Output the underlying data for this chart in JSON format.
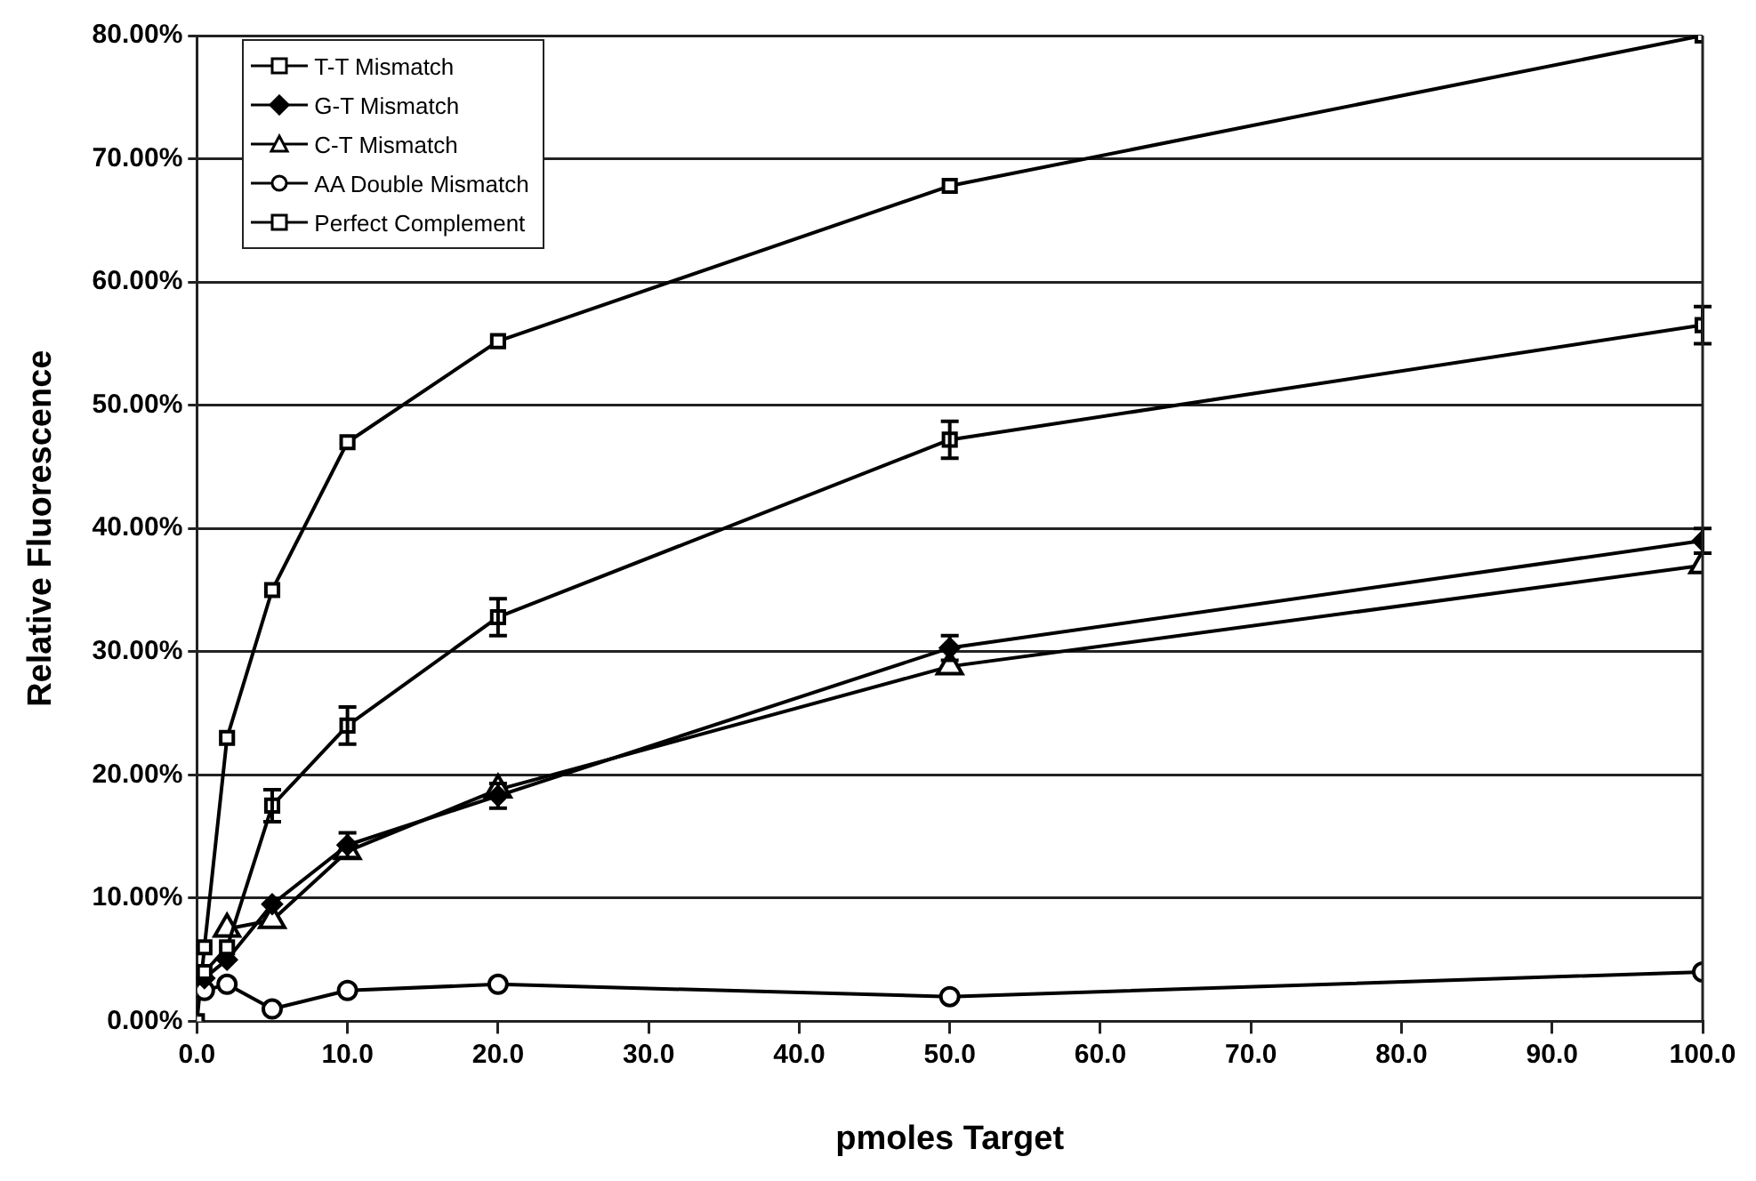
{
  "chart_data": {
    "type": "line",
    "xlabel": "pmoles Target",
    "ylabel": "Relative Fluorescence",
    "x": [
      0.5,
      2,
      5,
      10,
      20,
      50,
      100
    ],
    "series": [
      {
        "name": "T-T Mismatch",
        "color": "#000000",
        "marker": "square",
        "values": [
          4,
          6,
          17.5,
          24,
          32.8,
          47.2,
          56.5
        ],
        "errors": [
          null,
          null,
          1.3,
          1.5,
          1.5,
          1.5,
          1.5
        ]
      },
      {
        "name": "G-T Mismatch",
        "color": "#000000",
        "marker": "diamond",
        "values": [
          3.5,
          5,
          9.5,
          14.3,
          18.3,
          30.3,
          39
        ],
        "errors": [
          null,
          null,
          null,
          1,
          1,
          1,
          1
        ]
      },
      {
        "name": "C-T Mismatch",
        "color": "#000000",
        "marker": "triangle",
        "values": [
          null,
          7.5,
          8.2,
          13.8,
          18.8,
          28.8,
          37
        ]
      },
      {
        "name": "AA Double Mismatch",
        "color": "#000000",
        "marker": "circle",
        "values": [
          2.5,
          3,
          1,
          2.5,
          3,
          2,
          4
        ]
      },
      {
        "name": "Perfect Complement",
        "color": "#000000",
        "marker": "square",
        "x": [
          0,
          0.5,
          2,
          5,
          10,
          20,
          50,
          100
        ],
        "values": [
          0,
          6,
          23,
          35,
          47,
          55.2,
          67.8,
          80
        ]
      }
    ],
    "xlim": [
      0,
      100
    ],
    "xticks": [
      {
        "value": 0,
        "label": "0.0"
      },
      {
        "value": 10,
        "label": "10.0"
      },
      {
        "value": 20,
        "label": "20.0"
      },
      {
        "value": 30,
        "label": "30.0"
      },
      {
        "value": 40,
        "label": "40.0"
      },
      {
        "value": 50,
        "label": "50.0"
      },
      {
        "value": 60,
        "label": "60.0"
      },
      {
        "value": 70,
        "label": "70.0"
      },
      {
        "value": 80,
        "label": "80.0"
      },
      {
        "value": 90,
        "label": "90.0"
      },
      {
        "value": 100,
        "label": "100.0"
      }
    ],
    "ylim": [
      0,
      80
    ],
    "yticks": [
      {
        "value": 0,
        "label": "0.00%"
      },
      {
        "value": 10,
        "label": "10.00%"
      },
      {
        "value": 20,
        "label": "20.00%"
      },
      {
        "value": 30,
        "label": "30.00%"
      },
      {
        "value": 40,
        "label": "40.00%"
      },
      {
        "value": 50,
        "label": "50.00%"
      },
      {
        "value": 60,
        "label": "60.00%"
      },
      {
        "value": 70,
        "label": "70.00%"
      },
      {
        "value": 80,
        "label": "80.00%"
      }
    ],
    "grid": "y",
    "legend": "top left",
    "line_style": "solid"
  }
}
